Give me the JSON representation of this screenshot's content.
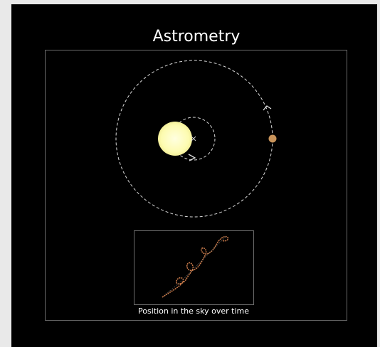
{
  "title": "Astrometry",
  "inset": {
    "caption": "Position in the sky over time"
  }
}
